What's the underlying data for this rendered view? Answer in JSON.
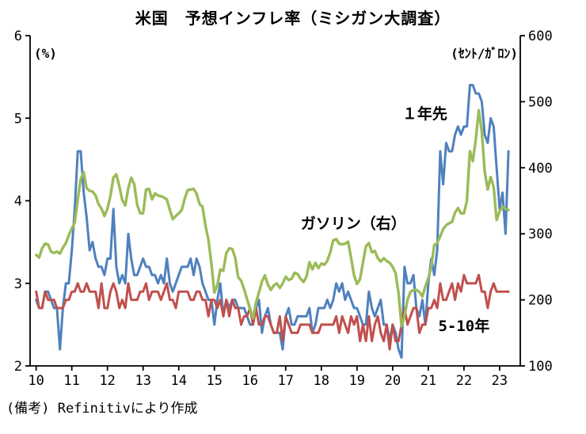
{
  "page": {
    "title": "米国　予想インフレ率（ミシガン大調査）",
    "source_note": "(備考) Refinitivにより作成"
  },
  "chart_data": {
    "type": "line",
    "title": "米国　予想インフレ率（ミシガン大調査）",
    "grid": false,
    "legend_position": "inline-annotations",
    "left_axis": {
      "unit_label": "(%)",
      "min": 2,
      "max": 6,
      "ticks": [
        6,
        5,
        4,
        3,
        2
      ]
    },
    "right_axis": {
      "unit_label": "(ｾﾝﾄ/ｶﾞﾛﾝ)",
      "min": 100,
      "max": 600,
      "ticks": [
        600,
        500,
        400,
        300,
        200,
        100
      ]
    },
    "x_axis": {
      "min": 2009.83,
      "max": 2023.58,
      "tick_values": [
        2010,
        2011,
        2012,
        2013,
        2014,
        2015,
        2016,
        2017,
        2018,
        2019,
        2020,
        2021,
        2022,
        2023
      ],
      "tick_labels": [
        "10",
        "11",
        "12",
        "13",
        "14",
        "15",
        "16",
        "17",
        "18",
        "19",
        "20",
        "21",
        "22",
        "23"
      ]
    },
    "series": [
      {
        "id": "one-year-ahead",
        "name": "１年先",
        "axis": "left",
        "color": "#4f81bd",
        "width": 3,
        "x_start": 2010.0,
        "points_per_year": 12,
        "values": [
          2.8,
          2.7,
          2.7,
          2.9,
          2.9,
          2.8,
          2.7,
          2.7,
          2.2,
          2.7,
          3.0,
          3.0,
          3.4,
          3.9,
          4.6,
          4.6,
          4.1,
          3.8,
          3.4,
          3.5,
          3.3,
          3.2,
          3.2,
          3.1,
          3.3,
          3.3,
          3.9,
          3.2,
          3.0,
          3.1,
          3.0,
          3.6,
          3.3,
          3.1,
          3.1,
          3.2,
          3.3,
          3.2,
          3.2,
          3.1,
          3.1,
          3.0,
          3.1,
          3.0,
          3.3,
          3.0,
          2.9,
          3.0,
          3.1,
          3.2,
          3.2,
          3.2,
          3.3,
          3.1,
          3.3,
          3.2,
          3.0,
          2.9,
          2.8,
          2.8,
          2.5,
          2.8,
          3.0,
          2.6,
          2.8,
          2.7,
          2.8,
          2.8,
          2.7,
          2.7,
          2.7,
          2.6,
          2.5,
          2.5,
          2.7,
          2.8,
          2.4,
          2.6,
          2.7,
          2.5,
          2.4,
          2.4,
          2.4,
          2.2,
          2.6,
          2.7,
          2.5,
          2.5,
          2.6,
          2.6,
          2.6,
          2.6,
          2.7,
          2.4,
          2.5,
          2.7,
          2.7,
          2.7,
          2.8,
          2.7,
          2.8,
          3.0,
          2.9,
          3.0,
          2.8,
          2.9,
          2.8,
          2.7,
          2.7,
          2.6,
          2.5,
          2.5,
          2.9,
          2.7,
          2.6,
          2.7,
          2.8,
          2.5,
          2.5,
          2.3,
          2.5,
          2.4,
          2.2,
          2.1,
          3.2,
          3.0,
          3.0,
          3.1,
          2.7,
          2.6,
          2.8,
          2.5,
          3.0,
          3.3,
          3.1,
          3.4,
          4.6,
          4.2,
          4.7,
          4.6,
          4.6,
          4.8,
          4.9,
          4.8,
          4.9,
          4.9,
          5.4,
          5.4,
          5.3,
          5.3,
          5.2,
          4.8,
          4.7,
          5.0,
          4.9,
          4.4,
          3.9,
          4.1,
          3.6,
          4.6
        ]
      },
      {
        "id": "five-to-ten-year",
        "name": "5-10年",
        "axis": "left",
        "color": "#c0504d",
        "width": 3,
        "x_start": 2010.0,
        "points_per_year": 12,
        "values": [
          2.9,
          2.7,
          2.7,
          2.9,
          2.8,
          2.8,
          2.8,
          2.7,
          2.7,
          2.7,
          2.8,
          2.8,
          2.9,
          2.9,
          3.0,
          2.9,
          2.9,
          3.0,
          2.9,
          2.9,
          2.9,
          2.7,
          3.0,
          2.7,
          2.7,
          2.9,
          3.0,
          2.9,
          2.7,
          2.8,
          2.7,
          3.0,
          2.8,
          2.8,
          2.8,
          2.9,
          2.9,
          3.0,
          2.8,
          2.9,
          2.9,
          2.9,
          2.8,
          2.9,
          3.0,
          2.8,
          2.8,
          2.7,
          2.9,
          2.9,
          2.9,
          2.9,
          2.8,
          2.8,
          2.9,
          2.9,
          2.8,
          2.8,
          2.6,
          2.8,
          2.8,
          2.7,
          2.8,
          2.6,
          2.8,
          2.6,
          2.8,
          2.7,
          2.7,
          2.5,
          2.6,
          2.6,
          2.7,
          2.5,
          2.7,
          2.5,
          2.5,
          2.6,
          2.6,
          2.5,
          2.4,
          2.4,
          2.6,
          2.3,
          2.6,
          2.5,
          2.4,
          2.4,
          2.4,
          2.5,
          2.5,
          2.5,
          2.5,
          2.4,
          2.4,
          2.4,
          2.5,
          2.5,
          2.5,
          2.5,
          2.5,
          2.6,
          2.4,
          2.6,
          2.5,
          2.4,
          2.6,
          2.5,
          2.6,
          2.3,
          2.5,
          2.3,
          2.6,
          2.3,
          2.5,
          2.6,
          2.4,
          2.3,
          2.5,
          2.2,
          2.5,
          2.3,
          2.3,
          2.5,
          2.7,
          2.5,
          2.6,
          2.7,
          2.7,
          2.4,
          2.5,
          2.5,
          2.7,
          2.7,
          2.8,
          2.7,
          3.0,
          2.8,
          2.8,
          2.9,
          3.0,
          2.8,
          3.0,
          2.9,
          3.1,
          3.0,
          3.0,
          3.0,
          3.0,
          3.1,
          2.9,
          2.9,
          2.7,
          2.9,
          3.0,
          2.9,
          2.9,
          2.9,
          2.9,
          2.9
        ]
      },
      {
        "id": "gasoline-right",
        "name": "ガソリン（右）",
        "axis": "right",
        "color": "#9bbb59",
        "width": 3.4,
        "x_start": 2010.0,
        "points_per_year": 12,
        "values": [
          268,
          264,
          278,
          285,
          284,
          273,
          271,
          273,
          270,
          279,
          286,
          298,
          308,
          317,
          352,
          383,
          393,
          369,
          365,
          364,
          358,
          345,
          338,
          327,
          338,
          357,
          385,
          390,
          372,
          351,
          343,
          369,
          385,
          375,
          344,
          331,
          331,
          367,
          368,
          352,
          361,
          358,
          357,
          355,
          352,
          336,
          322,
          327,
          331,
          336,
          353,
          366,
          367,
          368,
          361,
          345,
          341,
          312,
          291,
          254,
          211,
          222,
          246,
          244,
          271,
          278,
          277,
          264,
          234,
          229,
          216,
          201,
          186,
          172,
          196,
          211,
          228,
          237,
          223,
          215,
          222,
          225,
          218,
          225,
          235,
          230,
          232,
          241,
          239,
          232,
          227,
          235,
          257,
          246,
          256,
          248,
          255,
          253,
          259,
          272,
          290,
          292,
          285,
          284,
          285,
          288,
          264,
          237,
          224,
          231,
          256,
          281,
          286,
          272,
          274,
          263,
          258,
          263,
          259,
          256,
          250,
          240,
          210,
          160,
          175,
          200,
          212,
          215,
          215,
          212,
          205,
          220,
          233,
          250,
          283,
          286,
          296,
          307,
          313,
          316,
          318,
          332,
          339,
          331,
          331,
          350,
          425,
          410,
          444,
          487,
          455,
          394,
          367,
          386,
          371,
          321,
          334,
          341,
          338,
          336
        ]
      }
    ],
    "annotations": [
      {
        "id": "one-year-ahead-label",
        "text": "１年先",
        "color": "#4f81bd",
        "x": 2020.9,
        "y": 5.05
      },
      {
        "id": "gasoline-label",
        "text": "ガソリン（右）",
        "color": "#9bbb59",
        "x": 2018.9,
        "y": 3.72
      },
      {
        "id": "five-to-ten-year-label",
        "text": "5-10年",
        "color": "#c0504d",
        "x": 2022.0,
        "y": 2.48
      }
    ]
  }
}
